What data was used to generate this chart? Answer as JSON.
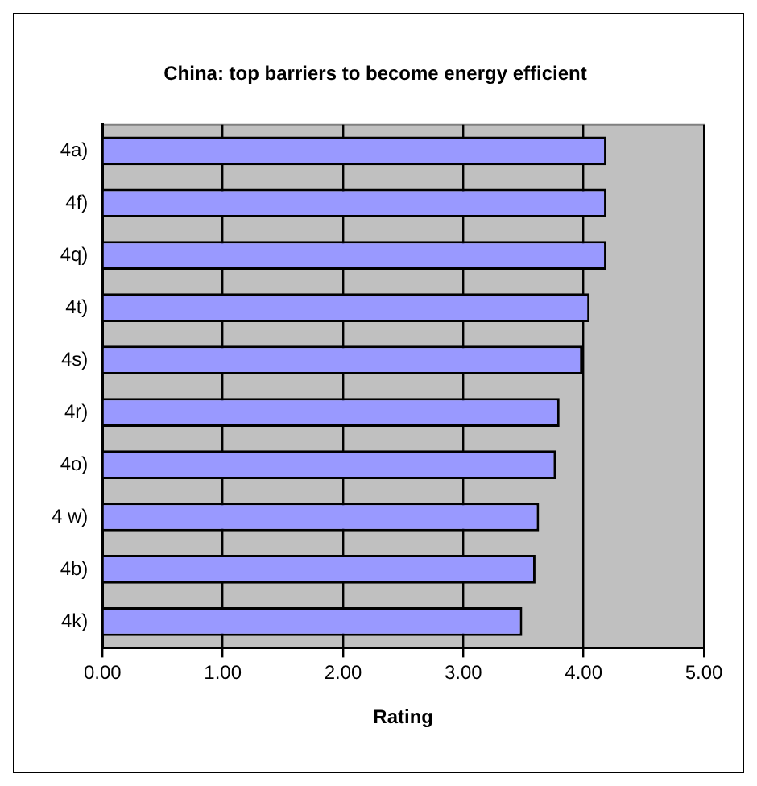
{
  "chart_data": {
    "type": "bar",
    "orientation": "horizontal",
    "title": "China: top barriers to become energy efficient",
    "xlabel": "Rating",
    "categories": [
      "4a)",
      "4f)",
      "4q)",
      "4t)",
      "4s)",
      "4r)",
      "4o)",
      "4 w)",
      "4b)",
      "4k)"
    ],
    "values": [
      4.19,
      4.19,
      4.19,
      4.05,
      3.99,
      3.8,
      3.77,
      3.63,
      3.6,
      3.49
    ],
    "color": "#9999ff",
    "xlim": [
      0,
      5
    ],
    "xticks": [
      {
        "value": 0,
        "label": "0.00"
      },
      {
        "value": 1,
        "label": "1.00"
      },
      {
        "value": 2,
        "label": "2.00"
      },
      {
        "value": 3,
        "label": "3.00"
      },
      {
        "value": 4,
        "label": "4.00"
      },
      {
        "value": 5,
        "label": "5.00"
      }
    ],
    "grid": "x",
    "legend": false
  }
}
